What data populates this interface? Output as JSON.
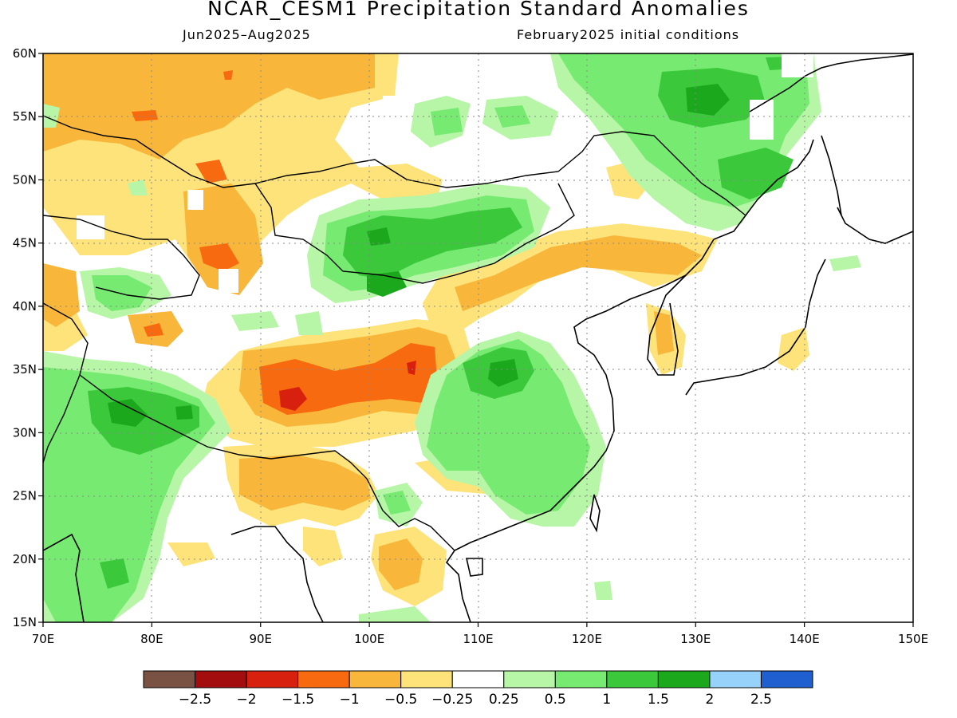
{
  "title": "NCAR_CESM1 Precipitation Standard Anomalies",
  "subtitle_left": "Jun2025–Aug2025",
  "subtitle_right": "February2025 initial conditions",
  "map": {
    "lon_range": [
      70,
      150
    ],
    "lat_range": [
      15,
      60
    ],
    "lon_ticks": [
      "70E",
      "80E",
      "90E",
      "100E",
      "110E",
      "120E",
      "130E",
      "140E",
      "150E"
    ],
    "lat_ticks": [
      "15N",
      "20N",
      "25N",
      "30N",
      "35N",
      "40N",
      "45N",
      "50N",
      "55N",
      "60N"
    ],
    "grid_style": "dotted"
  },
  "colorbar": {
    "colors": [
      "#7a5244",
      "#a30d0d",
      "#d8200e",
      "#f76a10",
      "#f8b63a",
      "#fde37a",
      "#ffffff",
      "#b6f6a6",
      "#76ea71",
      "#3bc83b",
      "#1ca81c",
      "#96d2fa",
      "#1f5fd0"
    ],
    "labels": [
      "−2.5",
      "−2",
      "−1.5",
      "−1",
      "−0.5",
      "−0.25",
      "0.25",
      "0.5",
      "1",
      "1.5",
      "2",
      "2.5"
    ]
  }
}
